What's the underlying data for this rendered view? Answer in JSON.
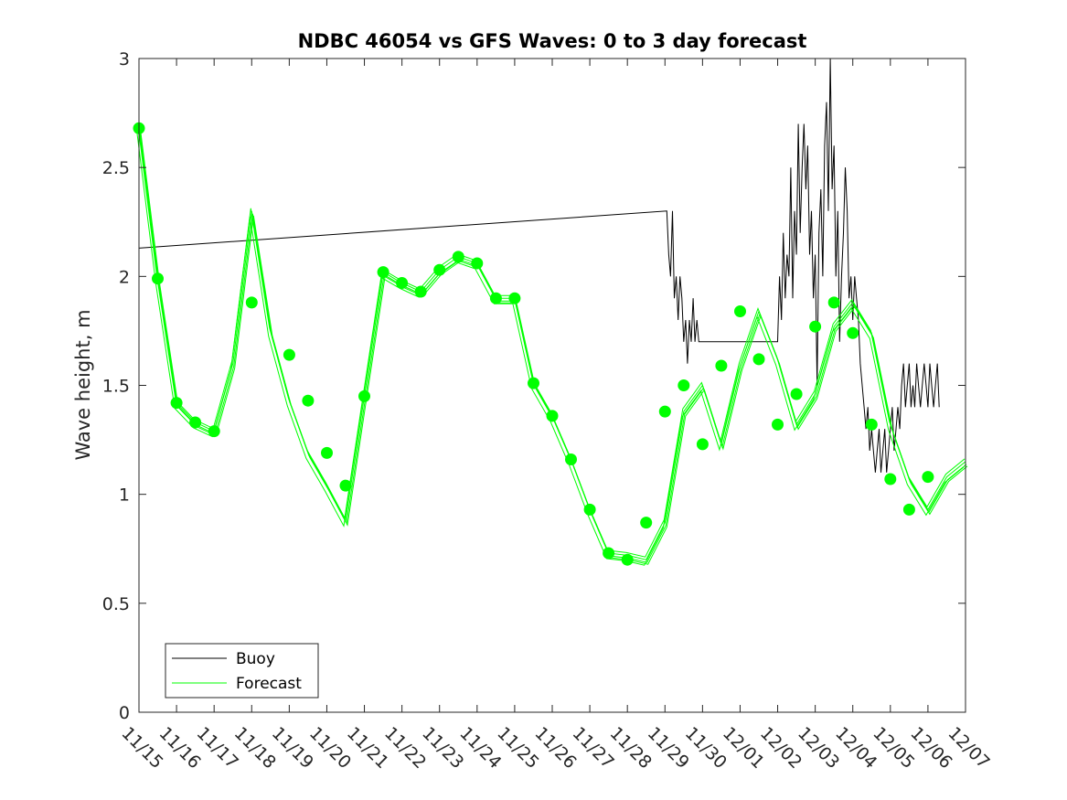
{
  "chart_data": {
    "type": "line",
    "title": "NDBC 46054 vs GFS Waves: 0 to 3 day forecast",
    "xlabel": "",
    "ylabel": "Wave height, m",
    "xlim": [
      0,
      22
    ],
    "ylim": [
      0,
      3
    ],
    "grid": false,
    "legend_position": "bottom-left",
    "x_tick_labels": [
      "11/15",
      "11/16",
      "11/17",
      "11/18",
      "11/19",
      "11/20",
      "11/21",
      "11/22",
      "11/23",
      "11/24",
      "11/25",
      "11/26",
      "11/27",
      "11/28",
      "11/29",
      "11/30",
      "12/01",
      "12/02",
      "12/03",
      "12/04",
      "12/05",
      "12/06",
      "12/07"
    ],
    "y_ticks": [
      0,
      0.5,
      1,
      1.5,
      2,
      2.5,
      3
    ],
    "y_tick_labels": [
      "0",
      "0.5",
      "1",
      "1.5",
      "2",
      "2.5",
      "3"
    ],
    "colors": {
      "buoy": "#000000",
      "forecast": "#00ff00"
    },
    "series": [
      {
        "name": "Buoy",
        "legend_label": "Buoy",
        "x": [
          0,
          14.05,
          14.1,
          14.15,
          14.2,
          14.25,
          14.3,
          14.35,
          14.4,
          14.45,
          14.5,
          14.55,
          14.6,
          14.65,
          14.7,
          14.75,
          14.8,
          14.85,
          14.9,
          14.95,
          15.0,
          15.1,
          16.5,
          17.0,
          17.05,
          17.1,
          17.15,
          17.2,
          17.25,
          17.3,
          17.35,
          17.4,
          17.45,
          17.5,
          17.55,
          17.6,
          17.65,
          17.7,
          17.75,
          17.8,
          17.85,
          17.9,
          17.95,
          18.0,
          18.05,
          18.1,
          18.15,
          18.2,
          18.25,
          18.3,
          18.35,
          18.4,
          18.45,
          18.5,
          18.55,
          18.6,
          18.65,
          18.7,
          18.75,
          18.8,
          18.85,
          18.9,
          18.95,
          19.0,
          19.05,
          19.1,
          19.15,
          19.2,
          19.25,
          19.3,
          19.35,
          19.4,
          19.45,
          19.5,
          19.55,
          19.6,
          19.65,
          19.7,
          19.75,
          19.8,
          19.85,
          19.9,
          19.95,
          20.0,
          20.05,
          20.1,
          20.15,
          20.2,
          20.25,
          20.3,
          20.35,
          20.4,
          20.45,
          20.5,
          20.55,
          20.6,
          20.65,
          20.7,
          20.75,
          20.8,
          20.85,
          20.9,
          20.95,
          21.0,
          21.05,
          21.1,
          21.15,
          21.2,
          21.25,
          21.3
        ],
        "values": [
          2.13,
          2.3,
          2.1,
          2.0,
          2.3,
          1.9,
          2.0,
          1.8,
          2.0,
          1.9,
          1.7,
          1.8,
          1.6,
          1.8,
          1.7,
          1.9,
          1.7,
          1.8,
          1.7,
          1.7,
          1.7,
          1.7,
          1.7,
          1.7,
          2.0,
          1.8,
          2.2,
          1.9,
          2.1,
          2.0,
          2.5,
          1.9,
          2.3,
          2.1,
          2.7,
          2.2,
          2.5,
          2.7,
          2.4,
          2.6,
          2.1,
          2.3,
          1.9,
          2.1,
          1.5,
          2.2,
          2.4,
          2.0,
          2.6,
          2.8,
          2.3,
          3.0,
          2.4,
          2.6,
          2.0,
          2.3,
          1.7,
          2.0,
          2.2,
          2.5,
          2.3,
          1.9,
          2.0,
          1.8,
          2.0,
          1.9,
          1.8,
          1.6,
          1.5,
          1.4,
          1.3,
          1.4,
          1.2,
          1.3,
          1.2,
          1.1,
          1.2,
          1.3,
          1.1,
          1.2,
          1.3,
          1.1,
          1.2,
          1.3,
          1.4,
          1.2,
          1.3,
          1.4,
          1.3,
          1.5,
          1.6,
          1.4,
          1.5,
          1.6,
          1.4,
          1.5,
          1.4,
          1.6,
          1.5,
          1.4,
          1.5,
          1.6,
          1.5,
          1.4,
          1.6,
          1.5,
          1.4,
          1.5,
          1.6,
          1.4
        ]
      },
      {
        "name": "Forecast",
        "legend_label": "Forecast",
        "x": [
          0,
          0.5,
          1,
          1.5,
          2,
          2.5,
          3,
          3.5,
          4,
          4.5,
          5,
          5.5,
          6,
          6.5,
          7,
          7.5,
          8,
          8.5,
          9,
          9.5,
          10,
          10.5,
          11,
          11.5,
          12,
          12.5,
          13,
          13.5,
          14,
          14.5,
          15,
          15.5,
          16,
          16.5,
          17,
          17.5,
          18,
          18.5,
          19,
          19.5,
          20,
          20.5,
          21,
          21.5,
          22
        ],
        "values": [
          2.68,
          1.99,
          1.42,
          1.33,
          1.29,
          1.6,
          2.3,
          1.75,
          1.43,
          1.19,
          1.04,
          0.88,
          1.45,
          2.02,
          1.97,
          1.93,
          2.03,
          2.09,
          2.06,
          1.9,
          1.9,
          1.51,
          1.36,
          1.16,
          0.93,
          0.73,
          0.72,
          0.7,
          0.87,
          1.38,
          1.5,
          1.23,
          1.59,
          1.84,
          1.62,
          1.32,
          1.46,
          1.77,
          1.88,
          1.74,
          1.32,
          1.07,
          0.93,
          1.08,
          1.15
        ]
      }
    ],
    "forecast_markers": {
      "x": [
        0,
        0.5,
        1,
        1.5,
        2,
        3,
        4,
        4.5,
        5,
        5.5,
        6,
        6.5,
        7,
        7.5,
        8,
        8.5,
        9,
        9.5,
        10,
        10.5,
        11,
        11.5,
        12,
        12.5,
        13,
        13.5,
        14,
        14.5,
        15,
        15.5,
        16,
        16.5,
        17,
        17.5,
        18,
        18.5,
        19,
        19.5,
        20,
        20.5,
        21
      ],
      "values": [
        2.68,
        1.99,
        1.42,
        1.33,
        1.29,
        1.88,
        1.64,
        1.43,
        1.19,
        1.04,
        1.45,
        2.02,
        1.97,
        1.93,
        2.03,
        2.09,
        2.06,
        1.9,
        1.9,
        1.51,
        1.36,
        1.16,
        0.93,
        0.73,
        0.7,
        0.87,
        1.38,
        1.5,
        1.23,
        1.59,
        1.84,
        1.62,
        1.32,
        1.46,
        1.77,
        1.88,
        1.74,
        1.32,
        1.07,
        0.93,
        1.08
      ]
    }
  }
}
